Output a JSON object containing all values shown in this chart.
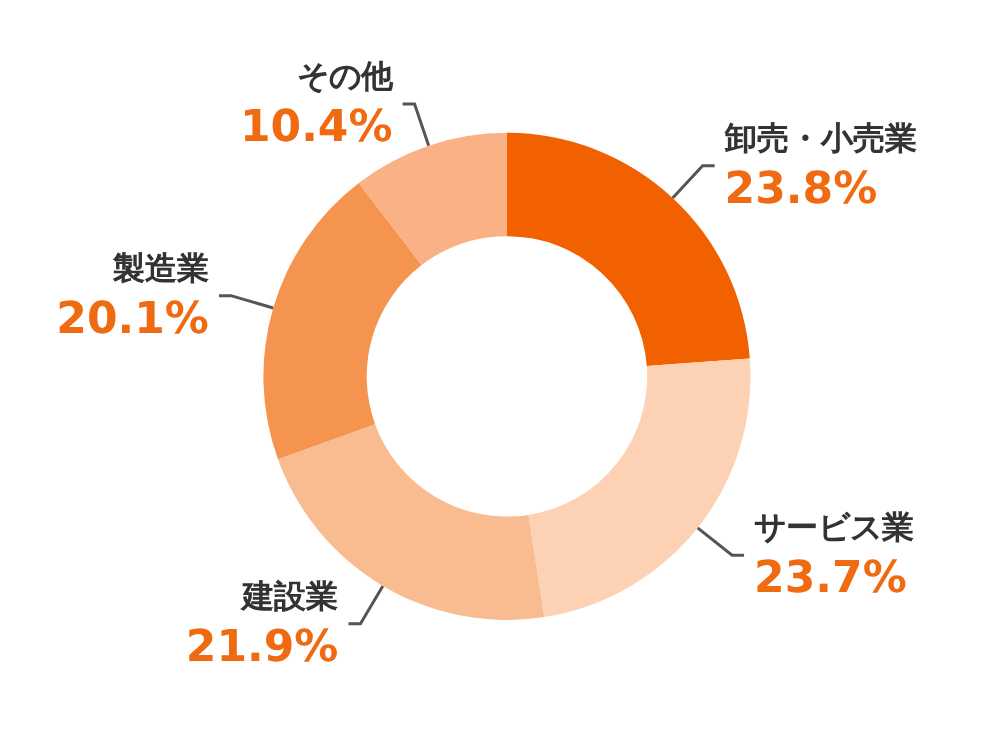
{
  "chart_data": {
    "type": "donut",
    "categories": [
      "卸売・小売業",
      "サービス業",
      "建設業",
      "製造業",
      "その他"
    ],
    "values": [
      23.8,
      23.7,
      21.9,
      20.1,
      10.4
    ],
    "colors": [
      "#f26100",
      "#fdd2b4",
      "#f9bc91",
      "#f5944f",
      "#f9b185"
    ],
    "value_labels": [
      "23.8%",
      "23.7%",
      "21.9%",
      "20.1%",
      "10.4%"
    ]
  }
}
